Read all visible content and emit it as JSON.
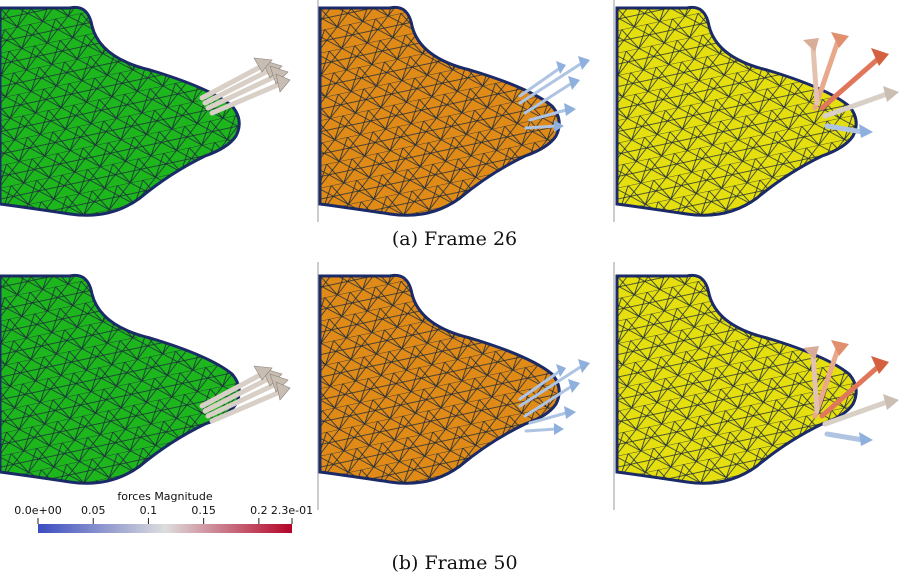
{
  "captions": {
    "a": "(a) Frame 26",
    "b": "(b) Frame 50"
  },
  "colorbar": {
    "title": "forces Magnitude",
    "range": [
      0,
      0.23
    ],
    "ticks": [
      {
        "value": 0,
        "label": "0.0e+00"
      },
      0.05,
      0.1,
      0.15,
      0.2,
      {
        "value": 0.23,
        "label": "2.3e-01"
      }
    ]
  }
}
